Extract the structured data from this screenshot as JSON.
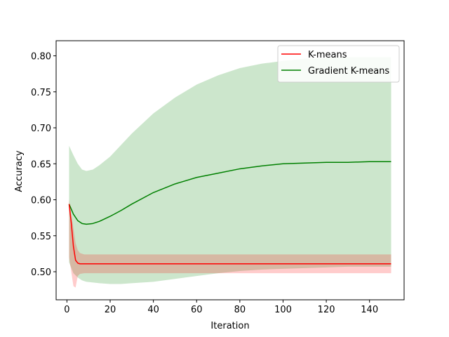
{
  "chart_data": {
    "type": "line",
    "title": "",
    "xlabel": "Iteration",
    "ylabel": "Accuracy",
    "xlim": [
      -5,
      156
    ],
    "ylim": [
      0.461,
      0.821
    ],
    "xticks": [
      0,
      20,
      40,
      60,
      80,
      100,
      120,
      140
    ],
    "yticks": [
      0.5,
      0.55,
      0.6,
      0.65,
      0.7,
      0.75,
      0.8
    ],
    "grid": false,
    "legend_position": "top-right",
    "series": [
      {
        "name": "K-means",
        "color": "#ff0000",
        "band_color": "#ff0000",
        "band_opacity": 0.2,
        "x": [
          1,
          2,
          3,
          4,
          5,
          6,
          8,
          10,
          15,
          20,
          30,
          40,
          60,
          80,
          100,
          120,
          150
        ],
        "values": [
          0.594,
          0.568,
          0.535,
          0.516,
          0.512,
          0.511,
          0.511,
          0.511,
          0.511,
          0.511,
          0.511,
          0.511,
          0.511,
          0.511,
          0.511,
          0.511,
          0.511
        ],
        "upper": [
          0.6,
          0.58,
          0.56,
          0.54,
          0.53,
          0.526,
          0.524,
          0.524,
          0.524,
          0.524,
          0.524,
          0.524,
          0.524,
          0.524,
          0.524,
          0.524,
          0.524
        ],
        "lower": [
          0.52,
          0.5,
          0.48,
          0.478,
          0.494,
          0.497,
          0.498,
          0.498,
          0.498,
          0.498,
          0.498,
          0.498,
          0.498,
          0.498,
          0.498,
          0.498,
          0.498
        ]
      },
      {
        "name": "Gradient K-means",
        "color": "#008000",
        "band_color": "#008000",
        "band_opacity": 0.2,
        "x": [
          1,
          3,
          5,
          7,
          9,
          12,
          15,
          20,
          25,
          30,
          40,
          50,
          60,
          70,
          80,
          90,
          100,
          110,
          120,
          130,
          140,
          150
        ],
        "values": [
          0.594,
          0.58,
          0.571,
          0.567,
          0.566,
          0.567,
          0.57,
          0.577,
          0.585,
          0.594,
          0.61,
          0.622,
          0.631,
          0.637,
          0.643,
          0.647,
          0.65,
          0.651,
          0.652,
          0.652,
          0.653,
          0.653
        ],
        "upper": [
          0.675,
          0.662,
          0.65,
          0.642,
          0.64,
          0.642,
          0.648,
          0.66,
          0.676,
          0.692,
          0.72,
          0.742,
          0.76,
          0.773,
          0.783,
          0.789,
          0.793,
          0.796,
          0.797,
          0.798,
          0.798,
          0.798
        ],
        "lower": [
          0.513,
          0.498,
          0.492,
          0.488,
          0.486,
          0.485,
          0.484,
          0.483,
          0.483,
          0.484,
          0.486,
          0.49,
          0.494,
          0.498,
          0.501,
          0.503,
          0.504,
          0.505,
          0.506,
          0.507,
          0.507,
          0.507
        ]
      }
    ]
  }
}
